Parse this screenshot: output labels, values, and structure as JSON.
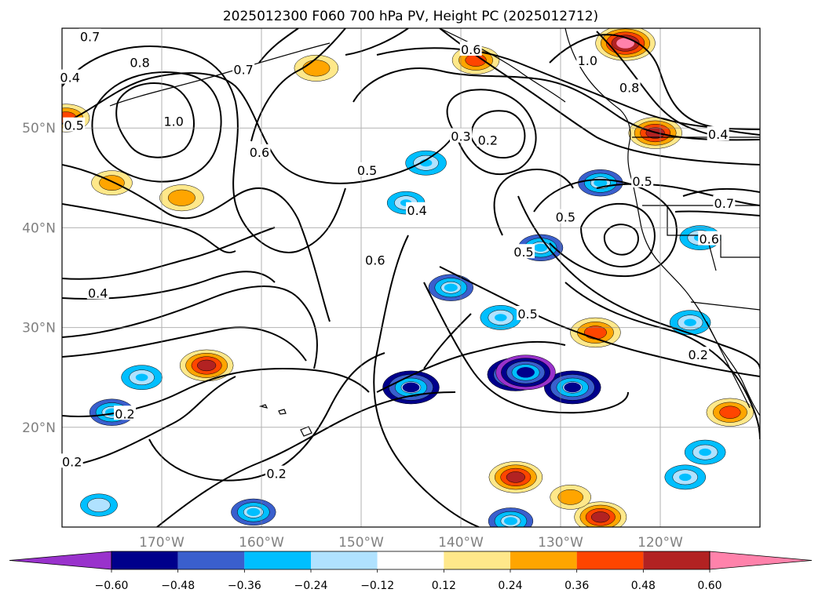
{
  "chart_data": {
    "type": "map-contour",
    "title": "2025012300 F060 700 hPa PV, Height PC (2025012712)",
    "lon_range": [
      -180,
      -110
    ],
    "lat_range": [
      10,
      60
    ],
    "lon_ticks": [
      {
        "value": -170,
        "label": "170°W"
      },
      {
        "value": -160,
        "label": "160°W"
      },
      {
        "value": -150,
        "label": "150°W"
      },
      {
        "value": -140,
        "label": "140°W"
      },
      {
        "value": -130,
        "label": "130°W"
      },
      {
        "value": -120,
        "label": "120°W"
      }
    ],
    "lat_ticks": [
      {
        "value": 20,
        "label": "20°N"
      },
      {
        "value": 30,
        "label": "30°N"
      },
      {
        "value": 40,
        "label": "40°N"
      },
      {
        "value": 50,
        "label": "50°N"
      }
    ],
    "grid": true,
    "colorbar": {
      "extend": "both",
      "levels": [
        -0.6,
        -0.48,
        -0.36,
        -0.24,
        -0.12,
        0.12,
        0.24,
        0.36,
        0.48,
        0.6
      ],
      "tick_labels": [
        "−0.60",
        "−0.48",
        "−0.36",
        "−0.24",
        "−0.12",
        "0.12",
        "0.24",
        "0.36",
        "0.48",
        "0.60"
      ],
      "colors": [
        "#9932cc",
        "#00008b",
        "#3a5fcd",
        "#00bfff",
        "#b0e2ff",
        "#ffffff",
        "#ffe88a",
        "#ffa500",
        "#ff4500",
        "#b22222",
        "#ff82ab"
      ]
    },
    "contour_labels": [
      {
        "text": "0.7",
        "lon": -177.2,
        "lat": 59.1
      },
      {
        "text": "0.8",
        "lon": -172.2,
        "lat": 56.5
      },
      {
        "text": "0.4",
        "lon": -179.2,
        "lat": 55.0
      },
      {
        "text": "0.5",
        "lon": -178.8,
        "lat": 50.2
      },
      {
        "text": "1.0",
        "lon": -168.8,
        "lat": 50.6
      },
      {
        "text": "0.7",
        "lon": -161.8,
        "lat": 55.8
      },
      {
        "text": "0.6",
        "lon": -160.2,
        "lat": 47.5
      },
      {
        "text": "0.5",
        "lon": -149.4,
        "lat": 45.7
      },
      {
        "text": "0.6",
        "lon": -148.6,
        "lat": 36.7
      },
      {
        "text": "0.4",
        "lon": -144.4,
        "lat": 41.7
      },
      {
        "text": "0.4",
        "lon": -176.4,
        "lat": 33.4
      },
      {
        "text": "0.2",
        "lon": -173.7,
        "lat": 21.3
      },
      {
        "text": "0.2",
        "lon": -179.0,
        "lat": 16.5
      },
      {
        "text": "0.2",
        "lon": -158.5,
        "lat": 15.3
      },
      {
        "text": "0.6",
        "lon": -139.0,
        "lat": 57.8
      },
      {
        "text": "0.3",
        "lon": -140.0,
        "lat": 49.1
      },
      {
        "text": "0.2",
        "lon": -137.3,
        "lat": 48.7
      },
      {
        "text": "0.5",
        "lon": -129.5,
        "lat": 41.0
      },
      {
        "text": "0.5",
        "lon": -133.7,
        "lat": 37.5
      },
      {
        "text": "0.5",
        "lon": -133.3,
        "lat": 31.3
      },
      {
        "text": "0.8",
        "lon": -123.1,
        "lat": 54.0
      },
      {
        "text": "1.0",
        "lon": -127.3,
        "lat": 56.7
      },
      {
        "text": "0.5",
        "lon": -121.8,
        "lat": 44.6
      },
      {
        "text": "0.7",
        "lon": -113.6,
        "lat": 42.4
      },
      {
        "text": "0.6",
        "lon": -115.1,
        "lat": 38.8
      },
      {
        "text": "0.4",
        "lon": -114.2,
        "lat": 49.3
      },
      {
        "text": "0.2",
        "lon": -116.2,
        "lat": 27.2
      }
    ],
    "pv_anomalies": [
      {
        "lon": -179.6,
        "lat": 51.0,
        "value": 0.4
      },
      {
        "lon": -175.0,
        "lat": 44.5,
        "value": 0.3
      },
      {
        "lon": -168.0,
        "lat": 43.0,
        "value": 0.35
      },
      {
        "lon": -154.5,
        "lat": 56.0,
        "value": 0.35
      },
      {
        "lon": -165.5,
        "lat": 26.2,
        "value": 0.5
      },
      {
        "lon": -172.0,
        "lat": 25.0,
        "value": -0.3
      },
      {
        "lon": -175.0,
        "lat": 21.5,
        "value": -0.36
      },
      {
        "lon": -145.0,
        "lat": 24.0,
        "value": -0.55
      },
      {
        "lon": -143.5,
        "lat": 46.5,
        "value": -0.3
      },
      {
        "lon": -145.5,
        "lat": 42.5,
        "value": -0.25
      },
      {
        "lon": -141.0,
        "lat": 34.0,
        "value": -0.36
      },
      {
        "lon": -136.0,
        "lat": 31.0,
        "value": -0.3
      },
      {
        "lon": -132.0,
        "lat": 38.0,
        "value": -0.36
      },
      {
        "lon": -128.8,
        "lat": 24.0,
        "value": -0.55
      },
      {
        "lon": -134.5,
        "lat": 25.3,
        "value": -0.55
      },
      {
        "lon": -126.5,
        "lat": 29.5,
        "value": 0.45
      },
      {
        "lon": -134.5,
        "lat": 15.0,
        "value": 0.5
      },
      {
        "lon": -126.0,
        "lat": 11.0,
        "value": 0.48
      },
      {
        "lon": -129.0,
        "lat": 13.0,
        "value": 0.3
      },
      {
        "lon": -116.0,
        "lat": 39.0,
        "value": -0.3
      },
      {
        "lon": -117.0,
        "lat": 30.5,
        "value": -0.3
      },
      {
        "lon": -117.5,
        "lat": 15.0,
        "value": -0.3
      },
      {
        "lon": -115.5,
        "lat": 17.5,
        "value": -0.3
      },
      {
        "lon": -113.0,
        "lat": 21.5,
        "value": 0.4
      },
      {
        "lon": -160.8,
        "lat": 11.5,
        "value": -0.36
      },
      {
        "lon": -176.3,
        "lat": 12.2,
        "value": -0.24
      },
      {
        "lon": -135.0,
        "lat": 10.6,
        "value": -0.36
      },
      {
        "lon": -120.5,
        "lat": 49.5,
        "value": 0.5
      },
      {
        "lon": -123.5,
        "lat": 58.5,
        "value": 0.6
      },
      {
        "lon": -138.5,
        "lat": 56.8,
        "value": 0.4
      },
      {
        "lon": -126.0,
        "lat": 44.5,
        "value": -0.36
      },
      {
        "lon": -133.5,
        "lat": 25.5,
        "value": -0.6
      }
    ]
  }
}
